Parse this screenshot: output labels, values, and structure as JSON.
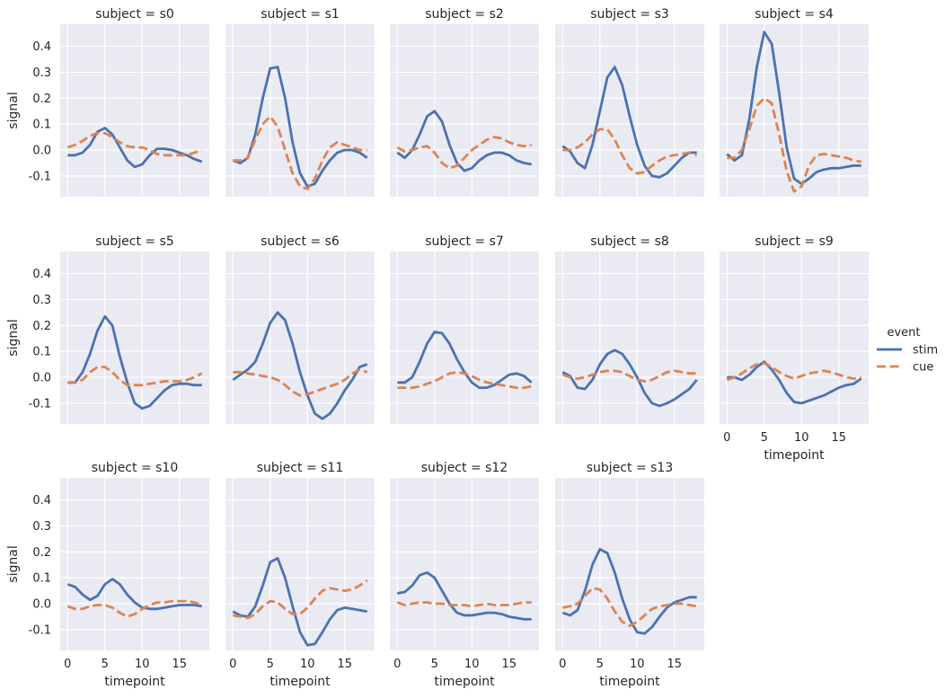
{
  "chart_data": {
    "type": "line",
    "facet_variable": "subject",
    "xlabel": "timepoint",
    "ylabel": "signal",
    "xlim": [
      -1,
      19
    ],
    "ylim": [
      -0.18,
      0.485
    ],
    "xticks": [
      "0",
      "5",
      "10",
      "15"
    ],
    "yticks": [
      "-0.1",
      "0.0",
      "0.1",
      "0.2",
      "0.3",
      "0.4"
    ],
    "grid": true,
    "legend": {
      "title": "event",
      "placement": "right",
      "entries": [
        {
          "label": "stim",
          "color": "#4c72b0",
          "style": "solid"
        },
        {
          "label": "cue",
          "color": "#dd8452",
          "style": "dashed"
        }
      ]
    },
    "x": [
      0,
      1,
      2,
      3,
      4,
      5,
      6,
      7,
      8,
      9,
      10,
      11,
      12,
      13,
      14,
      15,
      16,
      17,
      18
    ],
    "panels": [
      {
        "title": "subject = s0",
        "stim": [
          -0.02,
          -0.02,
          -0.01,
          0.02,
          0.07,
          0.085,
          0.06,
          0.01,
          -0.04,
          -0.065,
          -0.055,
          -0.02,
          0.005,
          0.005,
          0.0,
          -0.01,
          -0.02,
          -0.035,
          -0.045
        ],
        "cue": [
          0.01,
          0.02,
          0.035,
          0.055,
          0.065,
          0.065,
          0.05,
          0.03,
          0.015,
          0.01,
          0.01,
          0.0,
          -0.015,
          -0.02,
          -0.02,
          -0.02,
          -0.02,
          -0.01,
          0.0
        ]
      },
      {
        "title": "subject = s1",
        "stim": [
          -0.04,
          -0.05,
          -0.03,
          0.06,
          0.2,
          0.315,
          0.32,
          0.2,
          0.03,
          -0.09,
          -0.14,
          -0.13,
          -0.08,
          -0.04,
          -0.01,
          0.0,
          0.0,
          -0.01,
          -0.03
        ],
        "cue": [
          -0.04,
          -0.04,
          -0.03,
          0.04,
          0.1,
          0.13,
          0.09,
          0.0,
          -0.09,
          -0.14,
          -0.15,
          -0.11,
          -0.04,
          0.01,
          0.03,
          0.02,
          0.01,
          0.0,
          0.0
        ]
      },
      {
        "title": "subject = s2",
        "stim": [
          -0.01,
          -0.03,
          0.0,
          0.06,
          0.13,
          0.15,
          0.11,
          0.02,
          -0.05,
          -0.08,
          -0.07,
          -0.04,
          -0.02,
          -0.01,
          -0.01,
          -0.02,
          -0.04,
          -0.05,
          -0.055
        ],
        "cue": [
          0.01,
          -0.005,
          0.0,
          0.01,
          0.015,
          -0.01,
          -0.05,
          -0.07,
          -0.06,
          -0.03,
          0.0,
          0.02,
          0.04,
          0.05,
          0.045,
          0.03,
          0.02,
          0.015,
          0.02
        ]
      },
      {
        "title": "subject = s3",
        "stim": [
          0.015,
          -0.005,
          -0.05,
          -0.07,
          0.02,
          0.15,
          0.28,
          0.32,
          0.25,
          0.13,
          0.02,
          -0.06,
          -0.1,
          -0.105,
          -0.09,
          -0.06,
          -0.03,
          -0.01,
          -0.01
        ],
        "cue": [
          0.0,
          0.0,
          0.01,
          0.03,
          0.06,
          0.08,
          0.08,
          0.04,
          -0.02,
          -0.07,
          -0.09,
          -0.085,
          -0.06,
          -0.04,
          -0.025,
          -0.02,
          -0.015,
          -0.01,
          -0.02
        ]
      },
      {
        "title": "subject = s4",
        "stim": [
          -0.015,
          -0.04,
          -0.02,
          0.12,
          0.32,
          0.455,
          0.41,
          0.22,
          0.01,
          -0.11,
          -0.13,
          -0.11,
          -0.085,
          -0.075,
          -0.07,
          -0.07,
          -0.065,
          -0.06,
          -0.06
        ],
        "cue": [
          -0.03,
          -0.03,
          0.0,
          0.08,
          0.17,
          0.2,
          0.18,
          0.06,
          -0.08,
          -0.16,
          -0.14,
          -0.06,
          -0.02,
          -0.015,
          -0.02,
          -0.025,
          -0.03,
          -0.04,
          -0.045
        ]
      },
      {
        "title": "subject = s5",
        "stim": [
          -0.02,
          -0.02,
          0.02,
          0.09,
          0.18,
          0.235,
          0.2,
          0.08,
          -0.02,
          -0.1,
          -0.12,
          -0.11,
          -0.08,
          -0.05,
          -0.03,
          -0.025,
          -0.025,
          -0.03,
          -0.03
        ],
        "cue": [
          -0.02,
          -0.02,
          -0.01,
          0.02,
          0.04,
          0.04,
          0.02,
          -0.01,
          -0.03,
          -0.03,
          -0.03,
          -0.025,
          -0.02,
          -0.015,
          -0.015,
          -0.015,
          -0.01,
          0.0,
          0.015
        ]
      },
      {
        "title": "subject = s6",
        "stim": [
          -0.01,
          0.01,
          0.03,
          0.06,
          0.13,
          0.21,
          0.25,
          0.22,
          0.13,
          0.02,
          -0.07,
          -0.14,
          -0.16,
          -0.14,
          -0.1,
          -0.05,
          -0.01,
          0.04,
          0.05
        ],
        "cue": [
          0.02,
          0.02,
          0.015,
          0.01,
          0.005,
          0.0,
          -0.01,
          -0.03,
          -0.055,
          -0.07,
          -0.065,
          -0.055,
          -0.045,
          -0.035,
          -0.025,
          -0.01,
          0.015,
          0.03,
          0.02
        ]
      },
      {
        "title": "subject = s7",
        "stim": [
          -0.02,
          -0.02,
          0.0,
          0.06,
          0.13,
          0.175,
          0.17,
          0.13,
          0.07,
          0.02,
          -0.02,
          -0.04,
          -0.04,
          -0.03,
          -0.01,
          0.01,
          0.015,
          0.005,
          -0.02
        ],
        "cue": [
          -0.04,
          -0.04,
          -0.04,
          -0.035,
          -0.025,
          -0.015,
          0.0,
          0.015,
          0.02,
          0.015,
          0.005,
          -0.01,
          -0.02,
          -0.025,
          -0.03,
          -0.035,
          -0.04,
          -0.04,
          -0.035
        ]
      },
      {
        "title": "subject = s8",
        "stim": [
          0.02,
          0.005,
          -0.04,
          -0.045,
          -0.01,
          0.05,
          0.09,
          0.105,
          0.09,
          0.05,
          0.0,
          -0.06,
          -0.1,
          -0.11,
          -0.1,
          -0.085,
          -0.065,
          -0.045,
          -0.01
        ],
        "cue": [
          0.01,
          0.0,
          -0.005,
          0.0,
          0.01,
          0.02,
          0.025,
          0.025,
          0.02,
          0.005,
          -0.01,
          -0.015,
          -0.01,
          0.005,
          0.02,
          0.025,
          0.02,
          0.015,
          0.015
        ]
      },
      {
        "title": "subject = s9",
        "stim": [
          0.0,
          0.0,
          -0.01,
          0.01,
          0.04,
          0.06,
          0.03,
          -0.01,
          -0.06,
          -0.095,
          -0.1,
          -0.09,
          -0.08,
          -0.07,
          -0.055,
          -0.04,
          -0.03,
          -0.025,
          -0.005
        ],
        "cue": [
          -0.01,
          0.0,
          0.015,
          0.035,
          0.05,
          0.055,
          0.04,
          0.02,
          0.005,
          -0.005,
          0.005,
          0.015,
          0.02,
          0.025,
          0.02,
          0.01,
          0.0,
          -0.005,
          0.0
        ]
      },
      {
        "title": "subject = s10",
        "stim": [
          0.075,
          0.065,
          0.035,
          0.015,
          0.03,
          0.075,
          0.095,
          0.075,
          0.035,
          0.005,
          -0.015,
          -0.02,
          -0.02,
          -0.015,
          -0.01,
          -0.005,
          -0.005,
          -0.005,
          -0.01
        ],
        "cue": [
          -0.01,
          -0.02,
          -0.02,
          -0.01,
          -0.005,
          -0.005,
          -0.015,
          -0.035,
          -0.05,
          -0.04,
          -0.02,
          -0.005,
          0.005,
          0.005,
          0.01,
          0.01,
          0.01,
          0.005,
          -0.005
        ]
      },
      {
        "title": "subject = s11",
        "stim": [
          -0.03,
          -0.045,
          -0.05,
          -0.01,
          0.07,
          0.16,
          0.175,
          0.1,
          -0.01,
          -0.11,
          -0.16,
          -0.155,
          -0.11,
          -0.06,
          -0.025,
          -0.015,
          -0.02,
          -0.025,
          -0.03
        ],
        "cue": [
          -0.045,
          -0.05,
          -0.055,
          -0.04,
          -0.01,
          0.01,
          0.005,
          -0.02,
          -0.04,
          -0.04,
          -0.015,
          0.02,
          0.05,
          0.06,
          0.055,
          0.05,
          0.055,
          0.07,
          0.09
        ]
      },
      {
        "title": "subject = s12",
        "stim": [
          0.04,
          0.045,
          0.07,
          0.11,
          0.12,
          0.1,
          0.05,
          0.0,
          -0.035,
          -0.045,
          -0.045,
          -0.04,
          -0.035,
          -0.035,
          -0.04,
          -0.05,
          -0.055,
          -0.06,
          -0.06
        ],
        "cue": [
          0.005,
          -0.005,
          0.0,
          0.005,
          0.005,
          0.0,
          0.0,
          -0.005,
          -0.005,
          -0.005,
          -0.01,
          -0.005,
          0.0,
          -0.005,
          -0.005,
          -0.005,
          0.0,
          0.005,
          0.005
        ]
      },
      {
        "title": "subject = s13",
        "stim": [
          -0.035,
          -0.045,
          -0.025,
          0.05,
          0.15,
          0.21,
          0.195,
          0.12,
          0.02,
          -0.06,
          -0.11,
          -0.115,
          -0.09,
          -0.05,
          -0.015,
          0.005,
          0.015,
          0.025,
          0.025
        ],
        "cue": [
          -0.015,
          -0.01,
          0.0,
          0.03,
          0.06,
          0.055,
          0.02,
          -0.03,
          -0.07,
          -0.085,
          -0.07,
          -0.045,
          -0.02,
          -0.01,
          -0.005,
          0.0,
          0.0,
          -0.005,
          -0.01
        ]
      }
    ]
  }
}
